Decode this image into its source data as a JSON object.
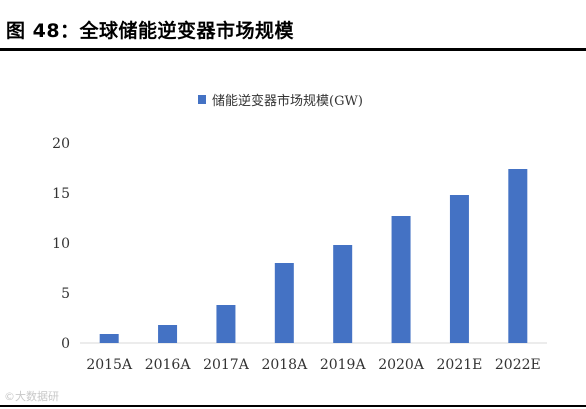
{
  "figure": {
    "title": "图 48：全球储能逆变器市场规模"
  },
  "watermark": "©大数据研",
  "chart_data": {
    "type": "bar",
    "categories": [
      "2015A",
      "2016A",
      "2017A",
      "2018A",
      "2019A",
      "2020A",
      "2021E",
      "2022E"
    ],
    "series": [
      {
        "name": "储能逆变器市场规模(GW)",
        "values": [
          0.9,
          1.8,
          3.8,
          8.0,
          9.8,
          12.7,
          14.8,
          17.4
        ]
      }
    ],
    "yticks": [
      0,
      5,
      10,
      15,
      20
    ],
    "ylim": [
      0,
      20
    ],
    "grid": false,
    "legend_position": "top-center",
    "colors": {
      "bar": "#4472C4",
      "axis": "#d9d9d9"
    }
  }
}
